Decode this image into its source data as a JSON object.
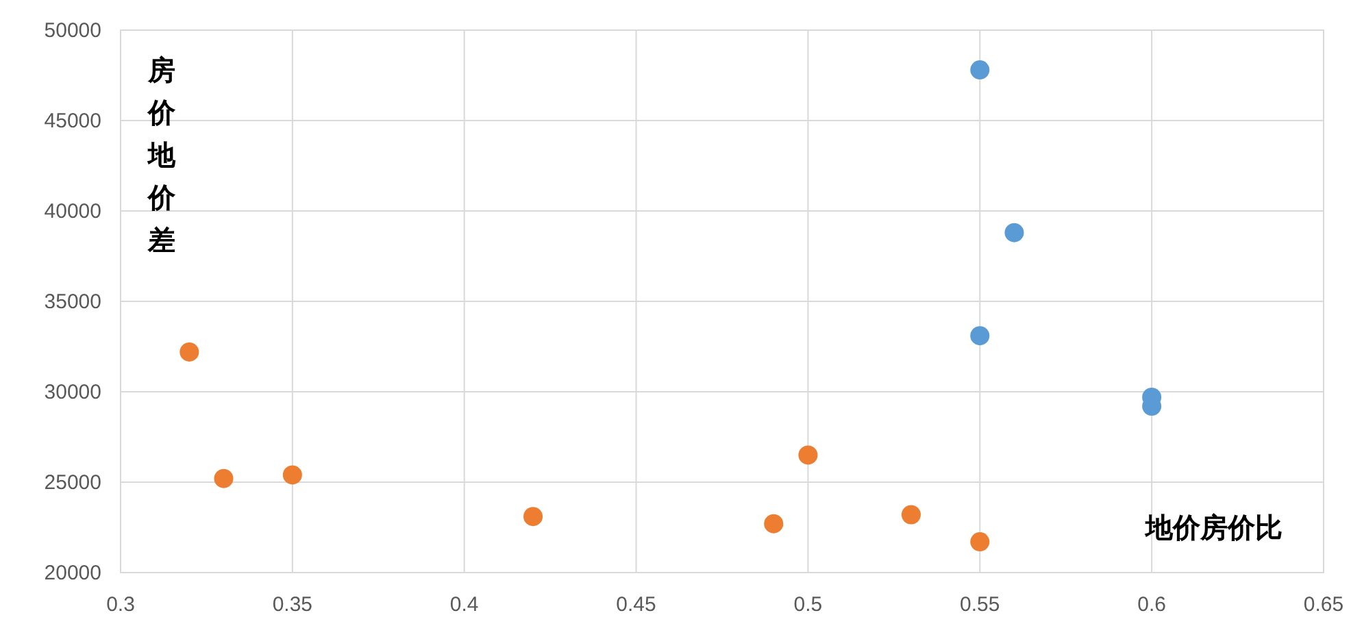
{
  "chart_data": {
    "type": "scatter",
    "xlabel": "地价房价比",
    "ylabel": "房价地价差",
    "series": [
      {
        "color": "#5b9bd5",
        "x": [
          0.55,
          0.56,
          0.55,
          0.6,
          0.6
        ],
        "values": [
          47800,
          38800,
          33100,
          29700,
          29200
        ]
      },
      {
        "color": "#ed7d31",
        "x": [
          0.32,
          0.33,
          0.35,
          0.42,
          0.49,
          0.5,
          0.53,
          0.55
        ],
        "values": [
          32200,
          25200,
          25400,
          23100,
          22700,
          26500,
          23200,
          21700
        ]
      }
    ],
    "xlim": [
      0.3,
      0.65
    ],
    "xticks": [
      0.3,
      0.35,
      0.4,
      0.45,
      0.5,
      0.55,
      0.6,
      0.65
    ],
    "ylim": [
      20000,
      50000
    ],
    "yticks": [
      20000,
      25000,
      30000,
      35000,
      40000,
      45000,
      50000
    ],
    "grid": true,
    "marker": "circle"
  }
}
